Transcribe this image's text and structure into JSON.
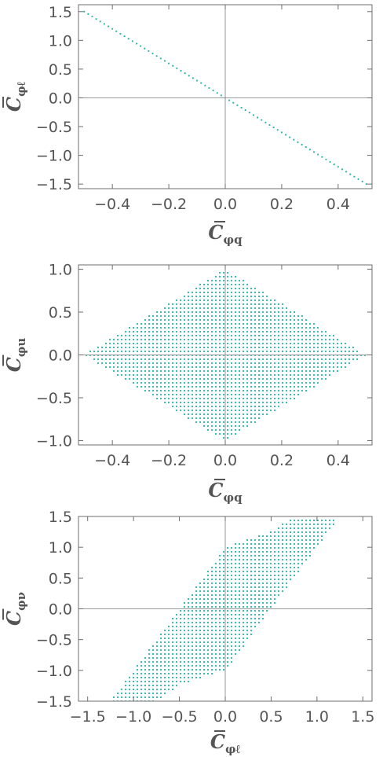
{
  "chart_data": [
    {
      "type": "scatter",
      "title": "",
      "xlabel": {
        "base": "C",
        "sub": "φq"
      },
      "ylabel": {
        "base": "C",
        "sub": "φℓ"
      },
      "xlim": [
        -0.52,
        0.52
      ],
      "ylim": [
        -1.58,
        1.62
      ],
      "xticks": [
        -0.4,
        -0.2,
        0.0,
        0.2,
        0.4
      ],
      "yticks": [
        -1.5,
        -1.0,
        -0.5,
        0.0,
        0.5,
        1.0,
        1.5
      ],
      "xtick_labels": [
        "−0.4",
        "−0.2",
        "0.0",
        "0.2",
        "0.4"
      ],
      "ytick_labels": [
        "−1.5",
        "−1.0",
        "−0.5",
        "0.0",
        "0.5",
        "1.0",
        "1.5"
      ],
      "grid": false,
      "color": "#2ab5a6",
      "region": {
        "shape": "line",
        "equation": "y = -3x",
        "x_range": [
          -0.5,
          0.5
        ],
        "endpoints": [
          [
            -0.5,
            1.5
          ],
          [
            0.5,
            -1.5
          ]
        ]
      }
    },
    {
      "type": "scatter",
      "title": "",
      "xlabel": {
        "base": "C",
        "sub": "φq"
      },
      "ylabel": {
        "base": "C",
        "sub": "φu"
      },
      "xlim": [
        -0.52,
        0.52
      ],
      "ylim": [
        -1.05,
        1.05
      ],
      "xticks": [
        -0.4,
        -0.2,
        0.0,
        0.2,
        0.4
      ],
      "yticks": [
        -1.0,
        -0.5,
        0.0,
        0.5,
        1.0
      ],
      "xtick_labels": [
        "−0.4",
        "−0.2",
        "0.0",
        "0.2",
        "0.4"
      ],
      "ytick_labels": [
        "−1.0",
        "−0.5",
        "0.0",
        "0.5",
        "1.0"
      ],
      "grid": false,
      "color": "#2ab5a6",
      "region": {
        "shape": "polygon",
        "vertices": [
          [
            -0.5,
            0.0
          ],
          [
            0.0,
            1.0
          ],
          [
            0.5,
            0.0
          ],
          [
            0.0,
            -1.0
          ]
        ]
      }
    },
    {
      "type": "scatter",
      "title": "",
      "xlabel": {
        "base": "C",
        "sub": "φℓ"
      },
      "ylabel": {
        "base": "C",
        "sub": "φν"
      },
      "xlim": [
        -1.6,
        1.6
      ],
      "ylim": [
        -1.5,
        1.5
      ],
      "xticks": [
        -1.5,
        -1.0,
        -0.5,
        0.0,
        0.5,
        1.0,
        1.5
      ],
      "yticks": [
        -1.5,
        -1.0,
        -0.5,
        0.0,
        0.5,
        1.0,
        1.5
      ],
      "xtick_labels": [
        "−1.5",
        "−1.0",
        "−0.5",
        "0.0",
        "0.5",
        "1.0",
        "1.5"
      ],
      "ytick_labels": [
        "−1.5",
        "−1.0",
        "−0.5",
        "0.0",
        "0.5",
        "1.0",
        "1.5"
      ],
      "grid": false,
      "color": "#2ab5a6",
      "region": {
        "shape": "polygon",
        "vertices": [
          [
            0.0,
            1.0
          ],
          [
            0.5,
            1.25
          ],
          [
            0.75,
            1.5
          ],
          [
            1.25,
            1.5
          ],
          [
            0.0,
            -1.0
          ],
          [
            -0.5,
            -1.25
          ],
          [
            -0.75,
            -1.5
          ],
          [
            -1.25,
            -1.5
          ]
        ]
      }
    }
  ]
}
